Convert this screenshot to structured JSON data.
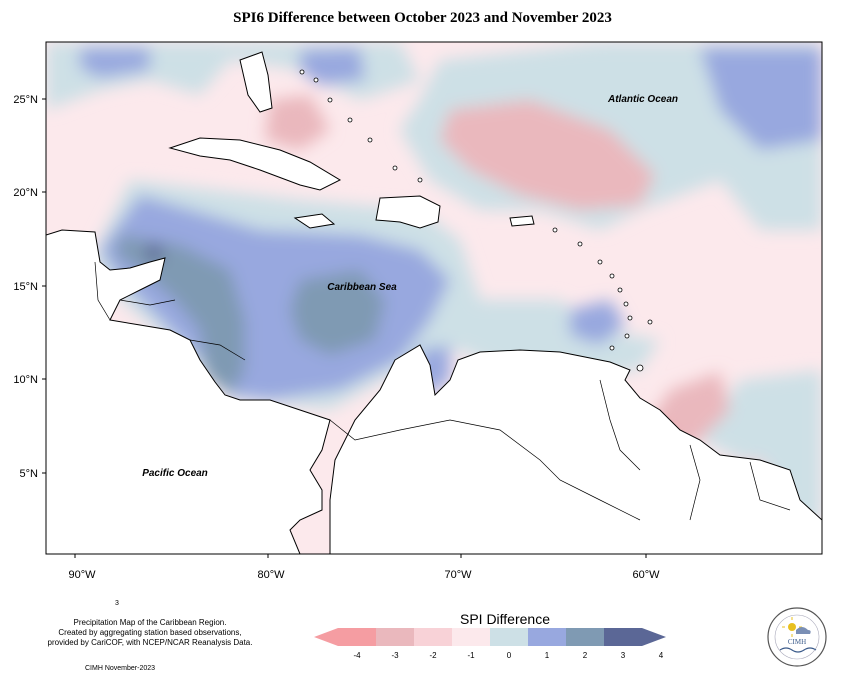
{
  "title": "SPI6 Difference between October 2023 and November 2023",
  "map": {
    "x_ticks": [
      "90°W",
      "80°W",
      "70°W",
      "60°W"
    ],
    "y_ticks": [
      "25°N",
      "20°N",
      "15°N",
      "10°N",
      "5°N"
    ],
    "labels": {
      "atlantic": "Atlantic Ocean",
      "caribbean": "Caribbean Sea",
      "pacific": "Pacific Ocean"
    }
  },
  "legend": {
    "title": "SPI Difference",
    "ticks": [
      "-4",
      "-3",
      "-2",
      "-1",
      "0",
      "1",
      "2",
      "3",
      "4"
    ],
    "colors": [
      "#f59da2",
      "#eab8bd",
      "#f8d2d7",
      "#fce9ec",
      "#cde0e6",
      "#98a8df",
      "#7f9ab3",
      "#5b6796"
    ]
  },
  "footer": {
    "mark": "3",
    "lines": [
      "Precipitation Map of the Caribbean Region.",
      "Created by aggregating station based observations,",
      "provided by CariCOF, with NCEP/NCAR Reanalysis Data."
    ],
    "date": "CIMH November-2023"
  },
  "logo": {
    "text": "CIMH"
  }
}
